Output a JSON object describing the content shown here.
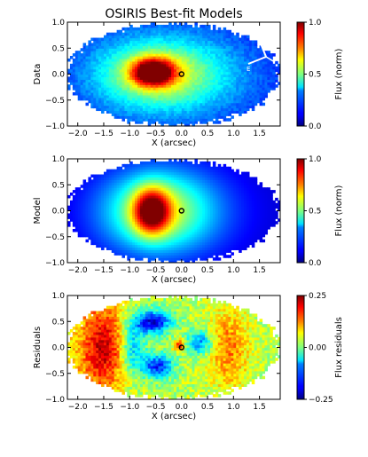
{
  "figure": {
    "title": "OSIRIS Best-fit Models"
  },
  "chart_data": [
    {
      "type": "heatmap",
      "panel": "data",
      "ylabel": "Data",
      "xlabel": "X (arcsec)",
      "xlim": [
        -2.2,
        1.9
      ],
      "ylim": [
        -1.0,
        1.0
      ],
      "xticks": [
        "−2.0",
        "−1.5",
        "−1.0",
        "−0.5",
        "0.0",
        "0.5",
        "1.0",
        "1.5"
      ],
      "yticks": [
        "−1.0",
        "−0.5",
        "0.0",
        "0.5",
        "1.0"
      ],
      "colorbar": {
        "label": "Flux (norm)",
        "ticks": [
          "0.0",
          "0.5",
          "1.0"
        ],
        "range": [
          0,
          1
        ]
      },
      "peak": {
        "x": -0.55,
        "y": 0.05,
        "value": 1.0
      },
      "marker": {
        "x": 0.0,
        "y": 0.0,
        "shape": "circle"
      },
      "compass": {
        "north": "N",
        "east": "E"
      }
    },
    {
      "type": "heatmap",
      "panel": "model",
      "ylabel": "Model",
      "xlabel": "X (arcsec)",
      "xlim": [
        -2.2,
        1.9
      ],
      "ylim": [
        -1.0,
        1.0
      ],
      "xticks": [
        "−2.0",
        "−1.5",
        "−1.0",
        "−0.5",
        "0.0",
        "0.5",
        "1.0",
        "1.5"
      ],
      "yticks": [
        "−1.0",
        "−0.5",
        "0.0",
        "0.5",
        "1.0"
      ],
      "colorbar": {
        "label": "Flux (norm)",
        "ticks": [
          "0.0",
          "0.5",
          "1.0"
        ],
        "range": [
          0,
          1
        ]
      },
      "peak": {
        "x": -0.55,
        "y": 0.0,
        "value": 1.0
      },
      "marker": {
        "x": 0.0,
        "y": 0.0,
        "shape": "circle"
      }
    },
    {
      "type": "heatmap",
      "panel": "residuals",
      "ylabel": "Residuals",
      "xlabel": "X (arcsec)",
      "xlim": [
        -2.2,
        1.9
      ],
      "ylim": [
        -1.0,
        1.0
      ],
      "xticks": [
        "−2.0",
        "−1.5",
        "−1.0",
        "−0.5",
        "0.0",
        "0.5",
        "1.0",
        "1.5"
      ],
      "yticks": [
        "−1.0",
        "−0.5",
        "0.0",
        "0.5",
        "1.0"
      ],
      "colorbar": {
        "label": "Flux residuals",
        "ticks": [
          "0.25",
          "0.00",
          "−0.25"
        ],
        "range": [
          -0.25,
          0.25
        ]
      },
      "marker": {
        "x": 0.0,
        "y": 0.0,
        "shape": "circle"
      }
    }
  ]
}
